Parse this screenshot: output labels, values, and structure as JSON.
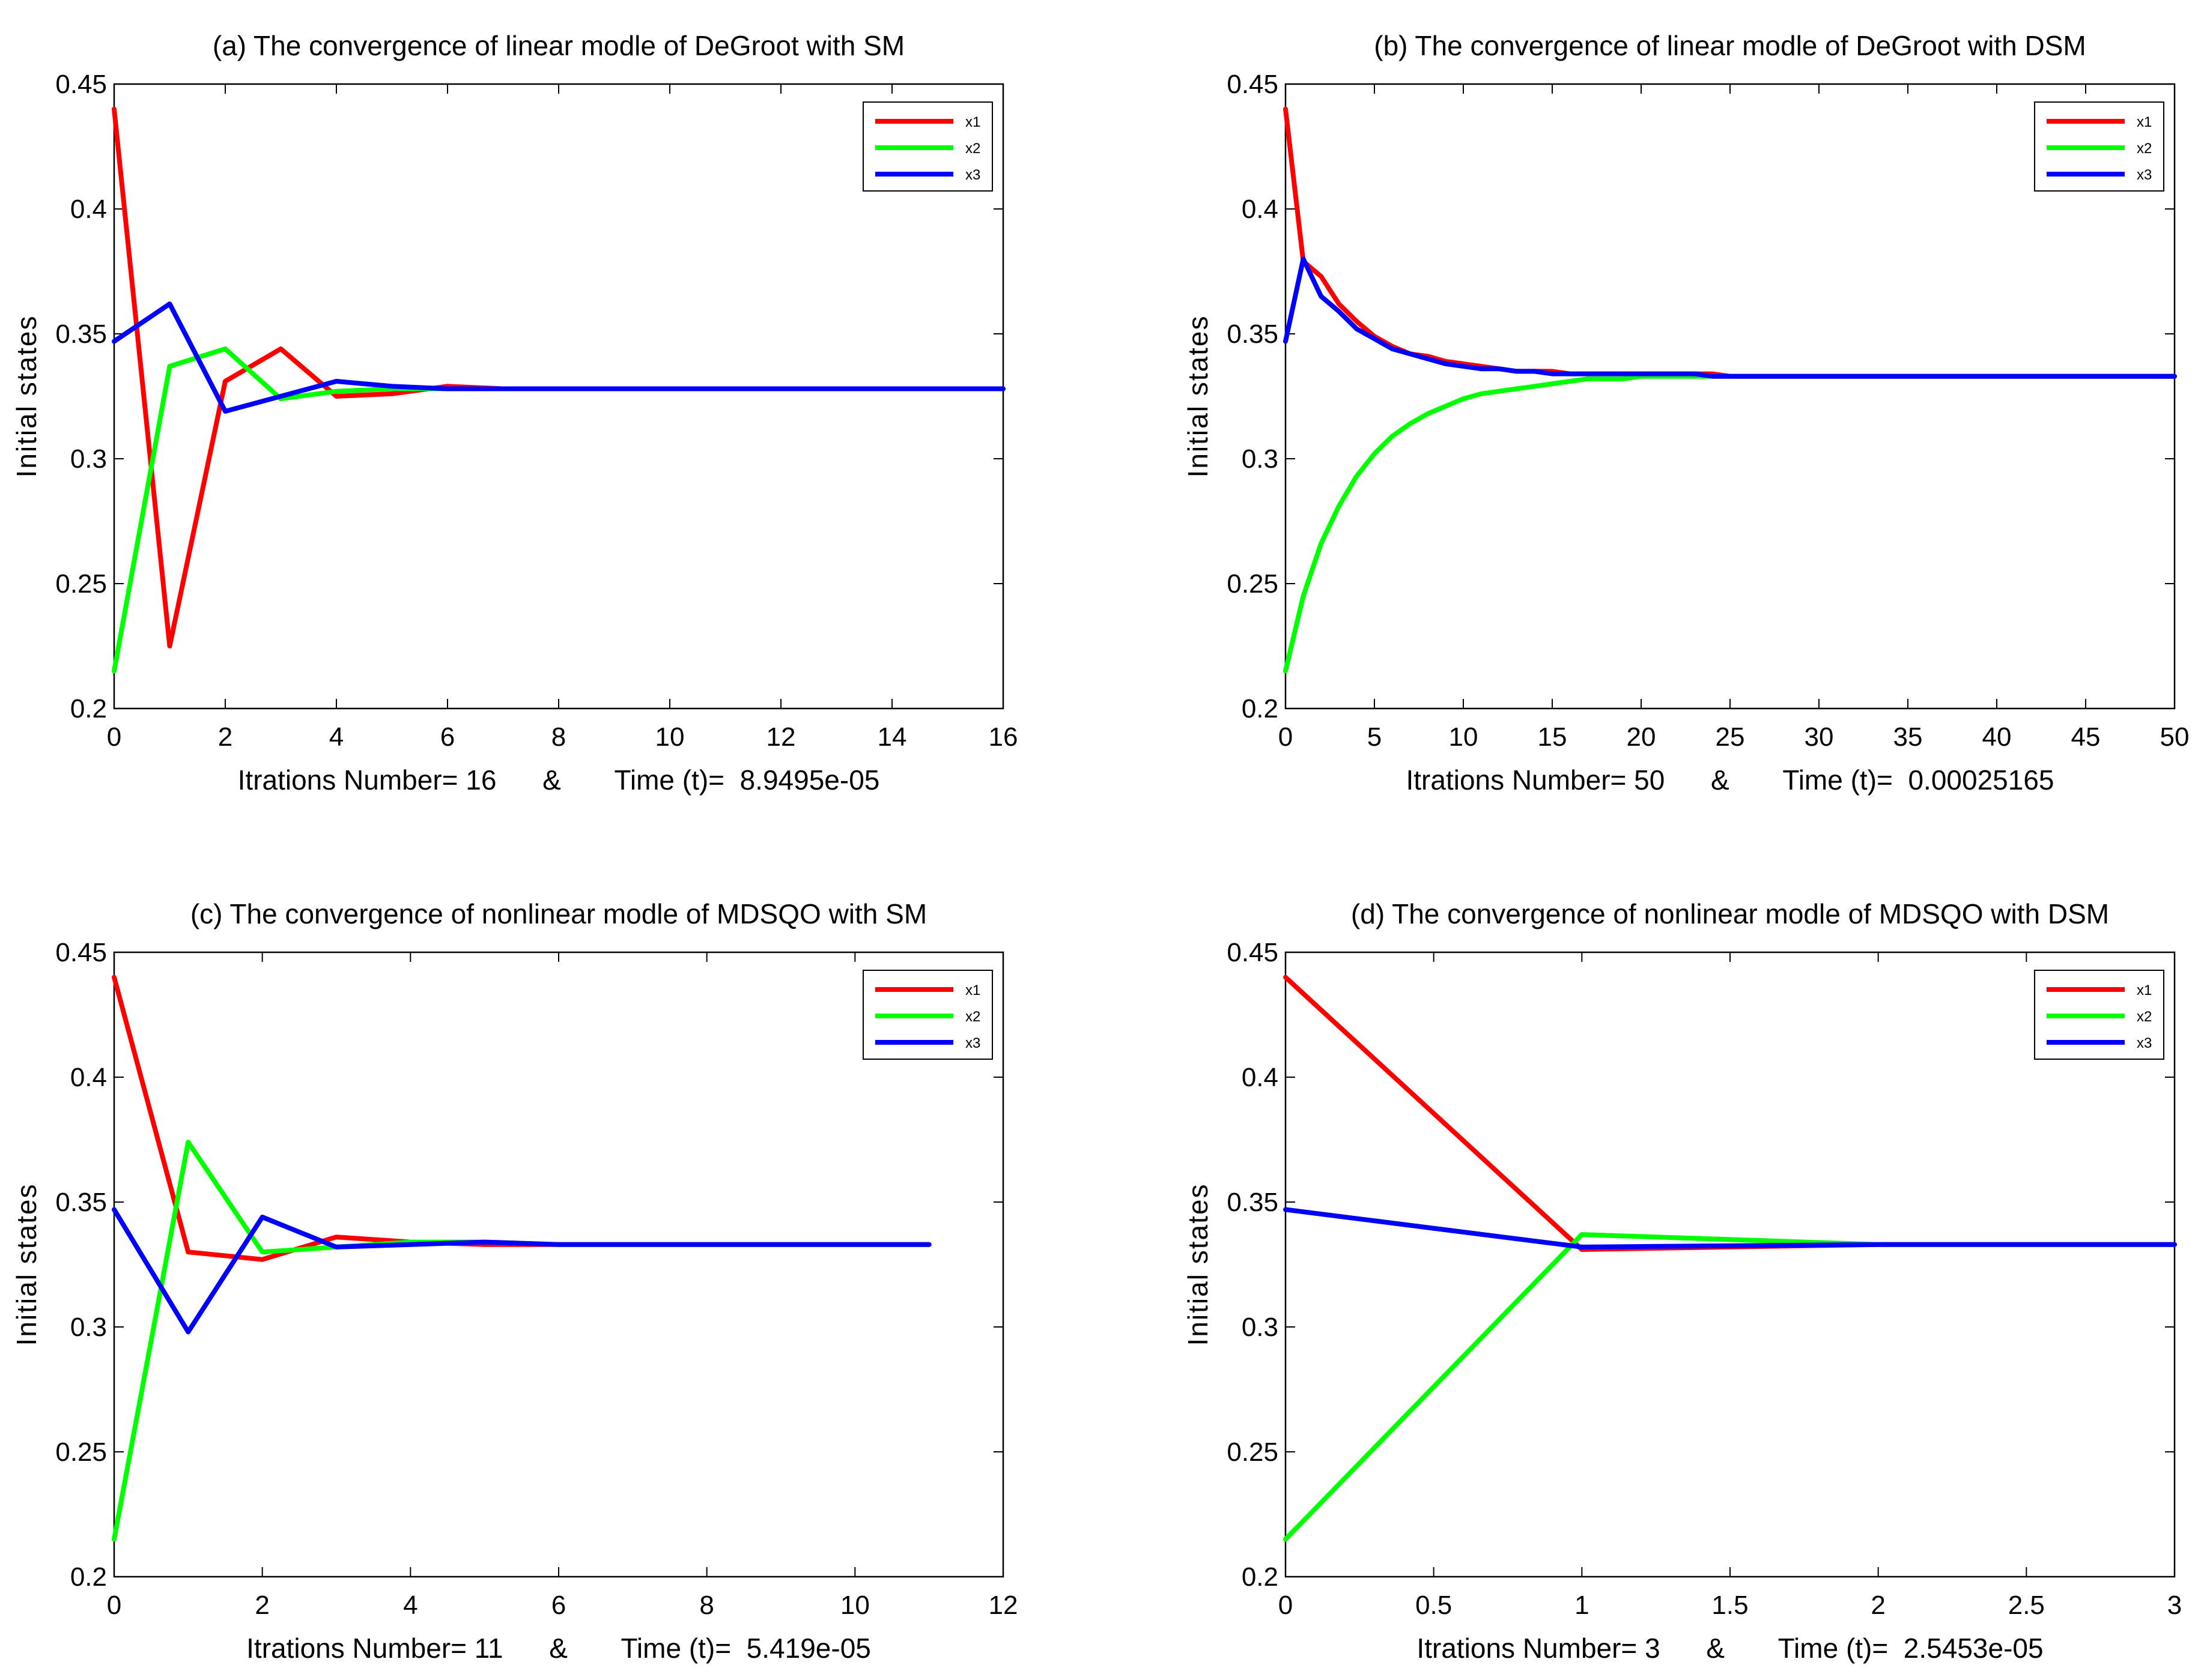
{
  "chart_data": [
    {
      "type": "line",
      "title": "(a) The convergence of linear modle of DeGroot with SM",
      "xlabel": "Itrations Number= 16      &       Time (t)=  8.9495e-05",
      "ylabel": "Initial states",
      "xlim": [
        0,
        16
      ],
      "ylim": [
        0.2,
        0.45
      ],
      "xticks": [
        0,
        2,
        4,
        6,
        8,
        10,
        12,
        14,
        16
      ],
      "xtick_labels": [
        "0",
        "2",
        "4",
        "6",
        "8",
        "10",
        "12",
        "14",
        "16"
      ],
      "yticks": [
        0.2,
        0.25,
        0.3,
        0.35,
        0.4,
        0.45
      ],
      "ytick_labels": [
        "0.2",
        "0.25",
        "0.3",
        "0.35",
        "0.4",
        "0.45"
      ],
      "grid": false,
      "legend_position": "top-right",
      "x": [
        0,
        1,
        2,
        3,
        4,
        5,
        6,
        7,
        8,
        9,
        10,
        11,
        12,
        13,
        14,
        15,
        16
      ],
      "series": [
        {
          "name": "x1",
          "color": "#ff0000",
          "values": [
            0.44,
            0.225,
            0.331,
            0.344,
            0.325,
            0.326,
            0.329,
            0.328,
            0.328,
            0.328,
            0.328,
            0.328,
            0.328,
            0.328,
            0.328,
            0.328,
            0.328
          ]
        },
        {
          "name": "x2",
          "color": "#00ff00",
          "values": [
            0.215,
            0.337,
            0.344,
            0.324,
            0.327,
            0.328,
            0.328,
            0.328,
            0.328,
            0.328,
            0.328,
            0.328,
            0.328,
            0.328,
            0.328,
            0.328,
            0.328
          ]
        },
        {
          "name": "x3",
          "color": "#0000ff",
          "values": [
            0.347,
            0.362,
            0.319,
            0.325,
            0.331,
            0.329,
            0.328,
            0.328,
            0.328,
            0.328,
            0.328,
            0.328,
            0.328,
            0.328,
            0.328,
            0.328,
            0.328
          ]
        }
      ]
    },
    {
      "type": "line",
      "title": "(b) The convergence of linear modle of DeGroot with DSM",
      "xlabel": "Itrations Number= 50      &       Time (t)=  0.00025165",
      "ylabel": "Initial states",
      "xlim": [
        0,
        50
      ],
      "ylim": [
        0.2,
        0.45
      ],
      "xticks": [
        0,
        5,
        10,
        15,
        20,
        25,
        30,
        35,
        40,
        45,
        50
      ],
      "xtick_labels": [
        "0",
        "5",
        "10",
        "15",
        "20",
        "25",
        "30",
        "35",
        "40",
        "45",
        "50"
      ],
      "yticks": [
        0.2,
        0.25,
        0.3,
        0.35,
        0.4,
        0.45
      ],
      "ytick_labels": [
        "0.2",
        "0.25",
        "0.3",
        "0.35",
        "0.4",
        "0.45"
      ],
      "grid": false,
      "legend_position": "top-right",
      "x": [
        0,
        1,
        2,
        3,
        4,
        5,
        6,
        7,
        8,
        9,
        10,
        11,
        12,
        13,
        14,
        15,
        16,
        17,
        18,
        19,
        20,
        21,
        22,
        23,
        24,
        25,
        30,
        35,
        40,
        45,
        50
      ],
      "series": [
        {
          "name": "x1",
          "color": "#ff0000",
          "values": [
            0.44,
            0.379,
            0.373,
            0.362,
            0.355,
            0.349,
            0.345,
            0.342,
            0.341,
            0.339,
            0.338,
            0.337,
            0.336,
            0.335,
            0.335,
            0.335,
            0.334,
            0.334,
            0.334,
            0.334,
            0.334,
            0.334,
            0.334,
            0.334,
            0.334,
            0.333,
            0.333,
            0.333,
            0.333,
            0.333,
            0.333
          ]
        },
        {
          "name": "x2",
          "color": "#00ff00",
          "values": [
            0.215,
            0.245,
            0.266,
            0.281,
            0.293,
            0.302,
            0.309,
            0.314,
            0.318,
            0.321,
            0.324,
            0.326,
            0.327,
            0.328,
            0.329,
            0.33,
            0.331,
            0.332,
            0.332,
            0.332,
            0.333,
            0.333,
            0.333,
            0.333,
            0.333,
            0.333,
            0.333,
            0.333,
            0.333,
            0.333,
            0.333
          ]
        },
        {
          "name": "x3",
          "color": "#0000ff",
          "values": [
            0.347,
            0.38,
            0.365,
            0.359,
            0.352,
            0.348,
            0.344,
            0.342,
            0.34,
            0.338,
            0.337,
            0.336,
            0.336,
            0.335,
            0.335,
            0.334,
            0.334,
            0.334,
            0.334,
            0.334,
            0.334,
            0.334,
            0.334,
            0.334,
            0.333,
            0.333,
            0.333,
            0.333,
            0.333,
            0.333,
            0.333
          ]
        }
      ]
    },
    {
      "type": "line",
      "title": "(c) The convergence of nonlinear modle of MDSQO with SM",
      "xlabel": "Itrations Number= 11      &       Time (t)=  5.419e-05",
      "ylabel": "Initial states",
      "xlim": [
        0,
        12
      ],
      "ylim": [
        0.2,
        0.45
      ],
      "xticks": [
        0,
        2,
        4,
        6,
        8,
        10,
        12
      ],
      "xtick_labels": [
        "0",
        "2",
        "4",
        "6",
        "8",
        "10",
        "12"
      ],
      "yticks": [
        0.2,
        0.25,
        0.3,
        0.35,
        0.4,
        0.45
      ],
      "ytick_labels": [
        "0.2",
        "0.25",
        "0.3",
        "0.35",
        "0.4",
        "0.45"
      ],
      "grid": false,
      "legend_position": "top-right",
      "x": [
        0,
        1,
        2,
        3,
        4,
        5,
        6,
        7,
        8,
        9,
        10,
        11
      ],
      "series": [
        {
          "name": "x1",
          "color": "#ff0000",
          "values": [
            0.44,
            0.33,
            0.327,
            0.336,
            0.334,
            0.333,
            0.333,
            0.333,
            0.333,
            0.333,
            0.333,
            0.333
          ]
        },
        {
          "name": "x2",
          "color": "#00ff00",
          "values": [
            0.215,
            0.374,
            0.33,
            0.332,
            0.334,
            0.334,
            0.333,
            0.333,
            0.333,
            0.333,
            0.333,
            0.333
          ]
        },
        {
          "name": "x3",
          "color": "#0000ff",
          "values": [
            0.347,
            0.298,
            0.344,
            0.332,
            0.333,
            0.334,
            0.333,
            0.333,
            0.333,
            0.333,
            0.333,
            0.333
          ]
        }
      ]
    },
    {
      "type": "line",
      "title": "(d) The convergence of nonlinear modle of MDSQO with DSM",
      "xlabel": "Itrations Number= 3      &       Time (t)=  2.5453e-05",
      "ylabel": "Initial states",
      "xlim": [
        0,
        3
      ],
      "ylim": [
        0.2,
        0.45
      ],
      "xticks": [
        0,
        0.5,
        1,
        1.5,
        2,
        2.5,
        3
      ],
      "xtick_labels": [
        "0",
        "0.5",
        "1",
        "1.5",
        "2",
        "2.5",
        "3"
      ],
      "yticks": [
        0.2,
        0.25,
        0.3,
        0.35,
        0.4,
        0.45
      ],
      "ytick_labels": [
        "0.2",
        "0.25",
        "0.3",
        "0.35",
        "0.4",
        "0.45"
      ],
      "grid": false,
      "legend_position": "top-right",
      "x": [
        0,
        1,
        2,
        3
      ],
      "series": [
        {
          "name": "x1",
          "color": "#ff0000",
          "values": [
            0.44,
            0.331,
            0.333,
            0.333
          ]
        },
        {
          "name": "x2",
          "color": "#00ff00",
          "values": [
            0.215,
            0.337,
            0.333,
            0.333
          ]
        },
        {
          "name": "x3",
          "color": "#0000ff",
          "values": [
            0.347,
            0.332,
            0.333,
            0.333
          ]
        }
      ]
    }
  ]
}
